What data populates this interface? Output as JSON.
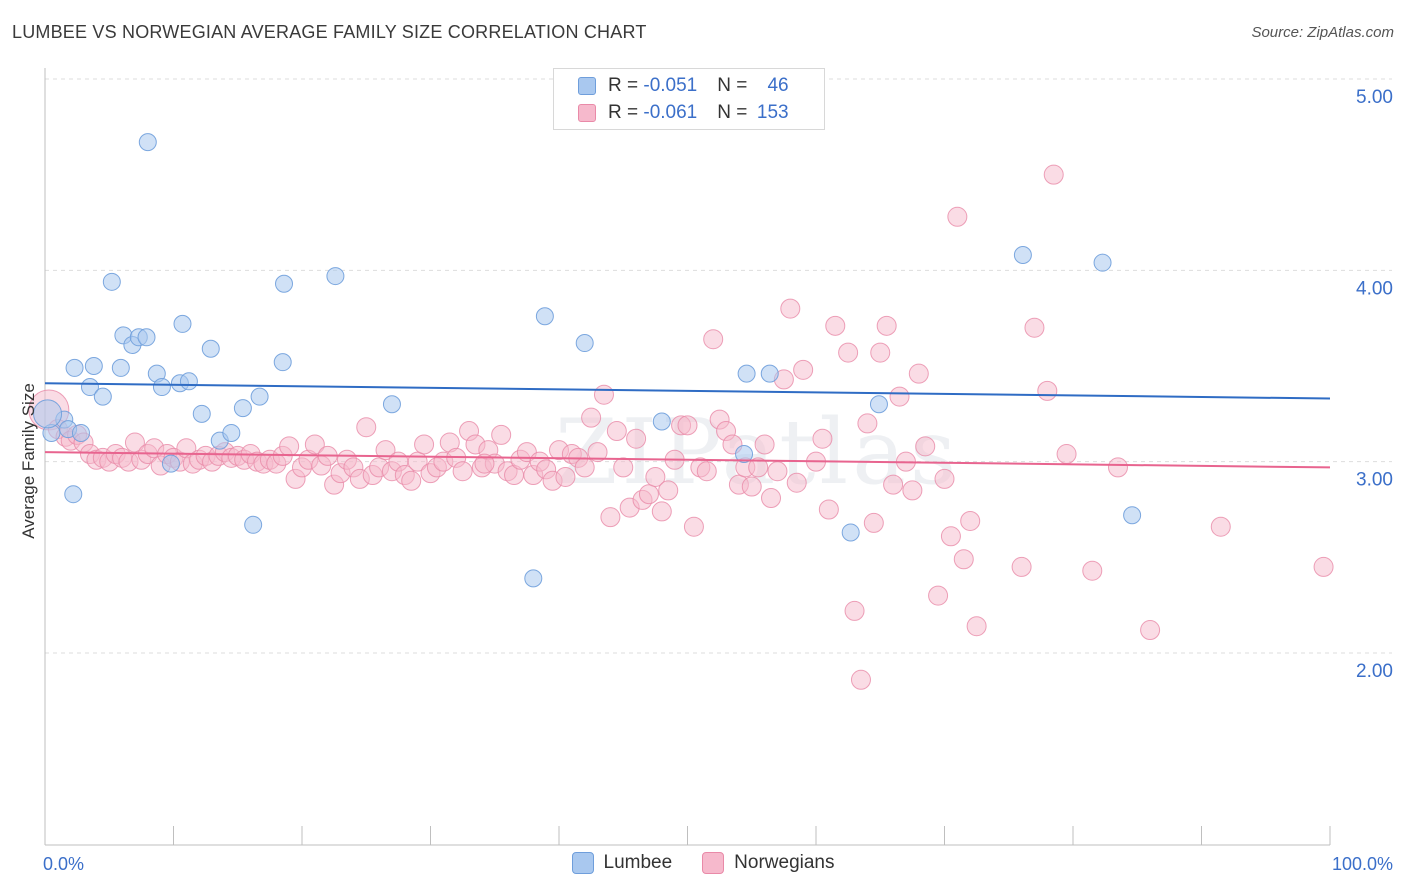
{
  "header": {
    "title": "LUMBEE VS NORWEGIAN AVERAGE FAMILY SIZE CORRELATION CHART",
    "source": "Source: ZipAtlas.com"
  },
  "watermark": "ZIPatlas",
  "legend": {
    "rows": [
      {
        "r_label": "R = ",
        "r_value": "-0.051",
        "n_label": "N = ",
        "n_value": "46"
      },
      {
        "r_label": "R = ",
        "r_value": "-0.061",
        "n_label": "N = ",
        "n_value": "153"
      }
    ]
  },
  "bottom_legend": {
    "series1": "Lumbee",
    "series2": "Norwegians"
  },
  "colors": {
    "lumbee_fill": "#a9c8ef",
    "lumbee_stroke": "#6f9edb",
    "lumbee_line": "#2f6cc4",
    "norw_fill": "#f6b9cc",
    "norw_stroke": "#e98aa8",
    "norw_line": "#e8648f",
    "axis_label": "#3b6fc9",
    "grid": "#dddddd"
  },
  "chart_data": {
    "type": "scatter",
    "title": "LUMBEE VS NORWEGIAN AVERAGE FAMILY SIZE CORRELATION CHART",
    "xlabel": "",
    "ylabel": "Average Family Size",
    "x_tick_labels": [
      "0.0%",
      "100.0%"
    ],
    "y_tick_labels": [
      "2.00",
      "3.00",
      "4.00",
      "5.00"
    ],
    "xlim": [
      0,
      100
    ],
    "ylim": [
      1.0,
      5.1
    ],
    "grid": true,
    "legend_position": "top-center",
    "series": [
      {
        "name": "Lumbee",
        "r": -0.051,
        "n": 46,
        "trend": {
          "x": [
            0,
            100
          ],
          "y": [
            3.41,
            3.33
          ]
        },
        "points": [
          [
            0.5,
            3.15
          ],
          [
            1.5,
            3.22
          ],
          [
            1.8,
            3.17
          ],
          [
            2.3,
            3.49
          ],
          [
            2.8,
            3.15
          ],
          [
            3.5,
            3.39
          ],
          [
            3.8,
            3.5
          ],
          [
            4.5,
            3.34
          ],
          [
            5.2,
            3.94
          ],
          [
            5.9,
            3.49
          ],
          [
            6.1,
            3.66
          ],
          [
            6.8,
            3.61
          ],
          [
            7.3,
            3.65
          ],
          [
            7.9,
            3.65
          ],
          [
            8.0,
            4.67
          ],
          [
            8.7,
            3.46
          ],
          [
            9.1,
            3.39
          ],
          [
            9.8,
            2.99
          ],
          [
            10.5,
            3.41
          ],
          [
            10.7,
            3.72
          ],
          [
            11.2,
            3.42
          ],
          [
            12.2,
            3.25
          ],
          [
            12.9,
            3.59
          ],
          [
            13.6,
            3.11
          ],
          [
            14.5,
            3.15
          ],
          [
            15.4,
            3.28
          ],
          [
            16.2,
            2.67
          ],
          [
            16.7,
            3.34
          ],
          [
            18.5,
            3.52
          ],
          [
            18.6,
            3.93
          ],
          [
            22.6,
            3.97
          ],
          [
            27.0,
            3.3
          ],
          [
            38.0,
            2.39
          ],
          [
            38.9,
            3.76
          ],
          [
            42.0,
            3.62
          ],
          [
            48.0,
            3.21
          ],
          [
            54.4,
            3.04
          ],
          [
            54.6,
            3.46
          ],
          [
            56.4,
            3.46
          ],
          [
            62.7,
            2.63
          ],
          [
            64.9,
            3.3
          ],
          [
            76.1,
            4.08
          ],
          [
            82.3,
            4.04
          ],
          [
            84.6,
            2.72
          ],
          [
            2.2,
            2.83
          ],
          [
            0.2,
            3.25
          ]
        ]
      },
      {
        "name": "Norwegians",
        "r": -0.061,
        "n": 153,
        "trend": {
          "x": [
            0,
            100
          ],
          "y": [
            3.05,
            2.97
          ]
        },
        "points": [
          [
            0.3,
            3.27
          ],
          [
            1.0,
            3.17
          ],
          [
            1.6,
            3.13
          ],
          [
            2.0,
            3.11
          ],
          [
            2.5,
            3.14
          ],
          [
            3.0,
            3.1
          ],
          [
            3.5,
            3.04
          ],
          [
            4.0,
            3.01
          ],
          [
            4.5,
            3.02
          ],
          [
            5.0,
            3.0
          ],
          [
            5.5,
            3.04
          ],
          [
            6.0,
            3.02
          ],
          [
            6.5,
            3.0
          ],
          [
            7.0,
            3.1
          ],
          [
            7.5,
            3.01
          ],
          [
            8.0,
            3.04
          ],
          [
            8.5,
            3.07
          ],
          [
            9.0,
            2.98
          ],
          [
            9.5,
            3.04
          ],
          [
            10.0,
            3.02
          ],
          [
            10.5,
            3.0
          ],
          [
            11.0,
            3.07
          ],
          [
            11.5,
            2.99
          ],
          [
            12.0,
            3.01
          ],
          [
            12.5,
            3.03
          ],
          [
            13.0,
            3.0
          ],
          [
            13.5,
            3.03
          ],
          [
            14.0,
            3.05
          ],
          [
            14.5,
            3.02
          ],
          [
            15.0,
            3.03
          ],
          [
            15.5,
            3.01
          ],
          [
            16.0,
            3.04
          ],
          [
            16.5,
            3.0
          ],
          [
            17.0,
            2.99
          ],
          [
            17.5,
            3.01
          ],
          [
            18.0,
            2.99
          ],
          [
            18.5,
            3.03
          ],
          [
            19.0,
            3.08
          ],
          [
            19.5,
            2.91
          ],
          [
            20.0,
            2.97
          ],
          [
            20.5,
            3.01
          ],
          [
            21.0,
            3.09
          ],
          [
            21.5,
            2.98
          ],
          [
            22.0,
            3.03
          ],
          [
            22.5,
            2.88
          ],
          [
            23.0,
            2.94
          ],
          [
            23.5,
            3.01
          ],
          [
            24.0,
            2.97
          ],
          [
            24.5,
            2.91
          ],
          [
            25.0,
            3.18
          ],
          [
            25.5,
            2.93
          ],
          [
            26.0,
            2.97
          ],
          [
            26.5,
            3.06
          ],
          [
            27.0,
            2.95
          ],
          [
            27.5,
            3.0
          ],
          [
            28.0,
            2.93
          ],
          [
            28.5,
            2.9
          ],
          [
            29.0,
            3.0
          ],
          [
            29.5,
            3.09
          ],
          [
            30.0,
            2.94
          ],
          [
            30.5,
            2.97
          ],
          [
            31.0,
            3.0
          ],
          [
            31.5,
            3.1
          ],
          [
            32.0,
            3.02
          ],
          [
            32.5,
            2.95
          ],
          [
            33.0,
            3.16
          ],
          [
            33.5,
            3.09
          ],
          [
            34.0,
            2.97
          ],
          [
            34.5,
            3.06
          ],
          [
            35.0,
            2.99
          ],
          [
            35.5,
            3.14
          ],
          [
            36.0,
            2.95
          ],
          [
            36.5,
            2.93
          ],
          [
            37.0,
            3.01
          ],
          [
            37.5,
            3.05
          ],
          [
            38.0,
            2.93
          ],
          [
            38.5,
            3.0
          ],
          [
            39.0,
            2.96
          ],
          [
            39.5,
            2.9
          ],
          [
            40.0,
            3.06
          ],
          [
            40.5,
            2.92
          ],
          [
            41.0,
            3.04
          ],
          [
            41.5,
            3.02
          ],
          [
            42.0,
            2.97
          ],
          [
            42.5,
            3.23
          ],
          [
            43.0,
            3.05
          ],
          [
            43.5,
            3.35
          ],
          [
            44.0,
            2.71
          ],
          [
            44.5,
            3.16
          ],
          [
            45.0,
            2.97
          ],
          [
            45.5,
            2.76
          ],
          [
            46.0,
            3.12
          ],
          [
            46.5,
            2.8
          ],
          [
            47.0,
            2.83
          ],
          [
            47.5,
            2.92
          ],
          [
            48.0,
            2.74
          ],
          [
            48.5,
            2.85
          ],
          [
            49.0,
            3.01
          ],
          [
            49.5,
            3.19
          ],
          [
            50.0,
            3.19
          ],
          [
            50.5,
            2.66
          ],
          [
            51.0,
            2.97
          ],
          [
            51.5,
            2.95
          ],
          [
            52.0,
            3.64
          ],
          [
            52.5,
            3.22
          ],
          [
            53.0,
            3.16
          ],
          [
            53.5,
            3.09
          ],
          [
            54.0,
            2.88
          ],
          [
            54.5,
            2.97
          ],
          [
            55.0,
            2.87
          ],
          [
            55.5,
            2.97
          ],
          [
            56.0,
            3.09
          ],
          [
            56.5,
            2.81
          ],
          [
            57.0,
            2.95
          ],
          [
            57.5,
            3.43
          ],
          [
            58.0,
            3.8
          ],
          [
            58.5,
            2.89
          ],
          [
            59.0,
            3.48
          ],
          [
            60.0,
            3.0
          ],
          [
            60.5,
            3.12
          ],
          [
            61.0,
            2.75
          ],
          [
            61.5,
            3.71
          ],
          [
            62.5,
            3.57
          ],
          [
            63.0,
            2.22
          ],
          [
            63.5,
            1.86
          ],
          [
            64.0,
            3.2
          ],
          [
            64.5,
            2.68
          ],
          [
            65.0,
            3.57
          ],
          [
            65.5,
            3.71
          ],
          [
            66.0,
            2.88
          ],
          [
            66.5,
            3.34
          ],
          [
            67.0,
            3.0
          ],
          [
            67.5,
            2.85
          ],
          [
            68.0,
            3.46
          ],
          [
            68.5,
            3.08
          ],
          [
            69.5,
            2.3
          ],
          [
            70.0,
            2.91
          ],
          [
            70.5,
            2.61
          ],
          [
            71.0,
            4.28
          ],
          [
            71.5,
            2.49
          ],
          [
            72.0,
            2.69
          ],
          [
            72.5,
            2.14
          ],
          [
            76.0,
            2.45
          ],
          [
            77.0,
            3.7
          ],
          [
            78.0,
            3.37
          ],
          [
            78.5,
            4.5
          ],
          [
            79.5,
            3.04
          ],
          [
            81.5,
            2.43
          ],
          [
            83.5,
            2.97
          ],
          [
            86.0,
            2.12
          ],
          [
            91.5,
            2.66
          ],
          [
            99.5,
            2.45
          ],
          [
            34.2,
            2.99
          ]
        ]
      }
    ]
  }
}
